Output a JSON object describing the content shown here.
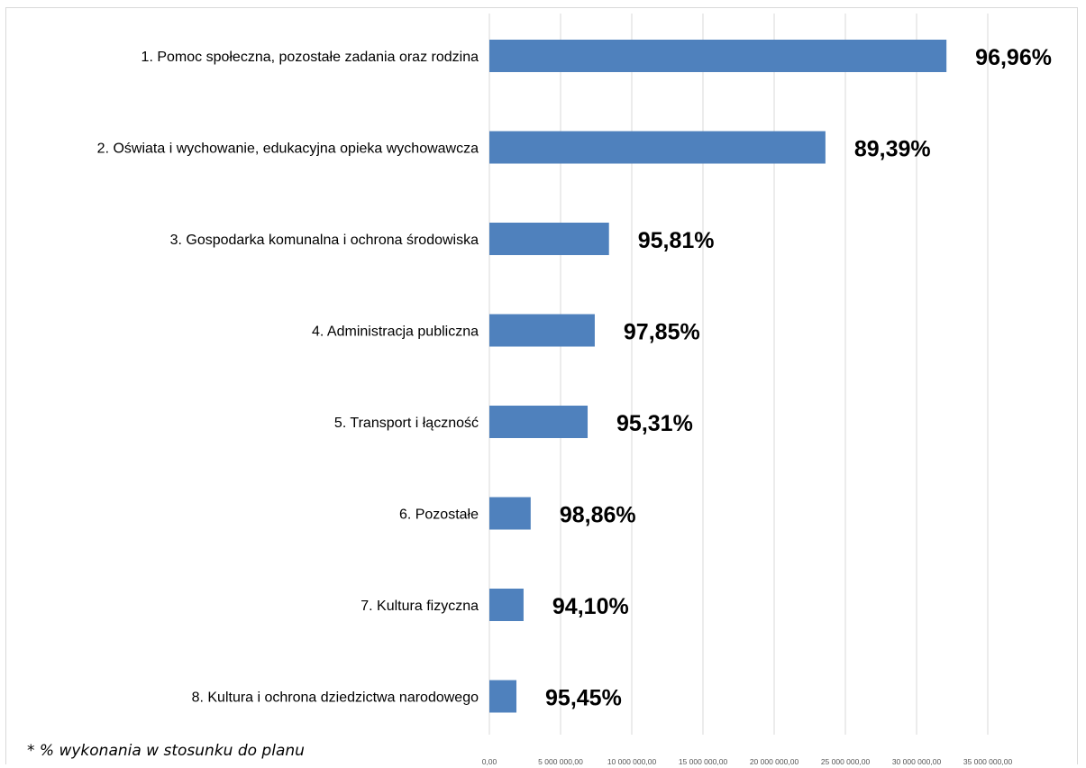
{
  "chart_data": {
    "type": "bar",
    "orientation": "horizontal",
    "title": "",
    "categories": [
      "1. Pomoc społeczna, pozostałe zadania oraz rodzina",
      "2. Oświata i wychowanie, edukacyjna opieka wychowawcza",
      "3. Gospodarka komunalna i ochrona środowiska",
      "4. Administracja publiczna",
      "5. Transport i łączność",
      "6. Pozostałe",
      "7. Kultura fizyczna",
      "8. Kultura i ochrona dziedzictwa narodowego"
    ],
    "values": [
      32100000,
      23600000,
      8400000,
      7400000,
      6900000,
      2900000,
      2400000,
      1900000
    ],
    "data_labels": [
      "96,96%",
      "89,39%",
      "95,81%",
      "97,85%",
      "95,31%",
      "98,86%",
      "94,10%",
      "95,45%"
    ],
    "x_ticks": [
      "0,00",
      "5 000 000,00",
      "10 000 000,00",
      "15 000 000,00",
      "20 000 000,00",
      "25 000 000,00",
      "30 000 000,00",
      "35 000 000,00"
    ],
    "xlim": [
      0,
      35000000
    ],
    "grid": true,
    "bar_color": "#4f81bd",
    "footnote": "* % wykonania w stosunku do planu"
  }
}
